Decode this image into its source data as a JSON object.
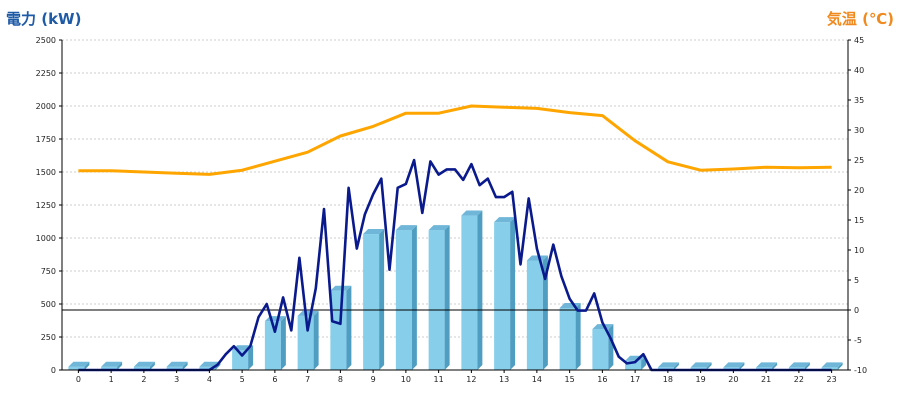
{
  "chart_data": {
    "type": "bar+line",
    "left_axis": {
      "title": "電力 (kW)",
      "ylim": [
        0,
        2500
      ],
      "ticks": [
        0,
        250,
        500,
        750,
        1000,
        1250,
        1500,
        1750,
        2000,
        2250,
        2500
      ],
      "color": "#1f5aa6"
    },
    "right_axis": {
      "title": "気温 (℃)",
      "ylim": [
        -10,
        45
      ],
      "ticks": [
        -10,
        -5,
        0,
        5,
        10,
        15,
        20,
        25,
        30,
        35,
        40,
        45
      ],
      "color": "#f08a1e"
    },
    "categories": [
      0,
      1,
      2,
      3,
      4,
      5,
      6,
      7,
      8,
      9,
      10,
      11,
      12,
      13,
      14,
      15,
      16,
      17,
      18,
      19,
      20,
      21,
      22,
      23
    ],
    "grid": true,
    "reference_line": {
      "axis": "right",
      "value": 0,
      "color": "#000000"
    },
    "bars": {
      "axis": "left",
      "color": "#87ceeb",
      "values": [
        25,
        25,
        25,
        25,
        25,
        150,
        370,
        410,
        600,
        1030,
        1060,
        1060,
        1170,
        1120,
        830,
        470,
        310,
        70,
        20,
        20,
        20,
        20,
        20,
        20
      ]
    },
    "power_line": {
      "axis": "left",
      "color": "#0a1a8c",
      "x": [
        0,
        0.5,
        1,
        1.5,
        2,
        2.5,
        3,
        3.5,
        4,
        4.25,
        4.5,
        4.75,
        5,
        5.25,
        5.5,
        5.75,
        6,
        6.25,
        6.5,
        6.75,
        7,
        7.25,
        7.5,
        7.75,
        8,
        8.25,
        8.5,
        8.75,
        9,
        9.25,
        9.5,
        9.75,
        10,
        10.25,
        10.5,
        10.75,
        11,
        11.25,
        11.5,
        11.75,
        12,
        12.25,
        12.5,
        12.75,
        13,
        13.25,
        13.5,
        13.75,
        14,
        14.25,
        14.5,
        14.75,
        15,
        15.25,
        15.5,
        15.75,
        16,
        16.25,
        16.5,
        16.75,
        17,
        17.25,
        17.5,
        18,
        19,
        20,
        21,
        22,
        23
      ],
      "values": [
        0,
        0,
        0,
        0,
        0,
        0,
        0,
        0,
        0,
        40,
        120,
        180,
        110,
        180,
        400,
        500,
        290,
        550,
        300,
        850,
        300,
        620,
        1220,
        370,
        350,
        1380,
        920,
        1180,
        1330,
        1450,
        760,
        1380,
        1410,
        1590,
        1190,
        1580,
        1480,
        1520,
        1520,
        1440,
        1560,
        1400,
        1450,
        1310,
        1310,
        1350,
        800,
        1300,
        920,
        690,
        950,
        710,
        540,
        450,
        450,
        580,
        360,
        240,
        100,
        50,
        60,
        120,
        0,
        0,
        0,
        0,
        0,
        0,
        0
      ]
    },
    "temperature_line": {
      "axis": "right",
      "color": "#ffa500",
      "x": [
        0,
        1,
        2,
        3,
        4,
        5,
        6,
        7,
        8,
        9,
        10,
        11,
        12,
        13,
        14,
        15,
        16,
        17,
        18,
        19,
        20,
        21,
        22,
        23
      ],
      "values": [
        23.2,
        23.2,
        23,
        22.8,
        22.6,
        23.3,
        24.8,
        26.3,
        29,
        30.6,
        32.8,
        32.8,
        34,
        33.8,
        33.6,
        32.9,
        32.4,
        28.2,
        24.7,
        23.3,
        23.5,
        23.8,
        23.7,
        23.8
      ]
    }
  }
}
